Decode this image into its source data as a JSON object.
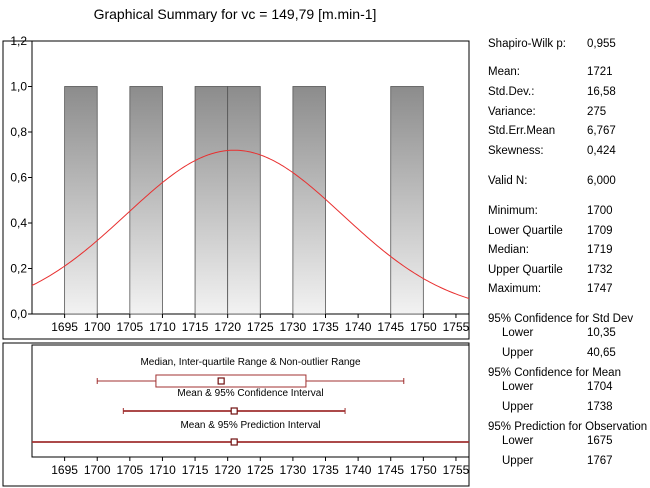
{
  "title": "Graphical Summary for vc = 149,79 [m.min-1]",
  "chart_data": [
    {
      "type": "bar",
      "subtype": "histogram",
      "bin_width": 5,
      "bins": [
        {
          "from": 1695,
          "to": 1700,
          "count": 1.0
        },
        {
          "from": 1705,
          "to": 1710,
          "count": 1.0
        },
        {
          "from": 1715,
          "to": 1720,
          "count": 1.0
        },
        {
          "from": 1720,
          "to": 1725,
          "count": 1.0
        },
        {
          "from": 1730,
          "to": 1735,
          "count": 1.0
        },
        {
          "from": 1745,
          "to": 1750,
          "count": 1.0
        }
      ],
      "normal_curve": {
        "mean": 1721,
        "sd": 16.58,
        "color": "#e83030"
      },
      "xlim": [
        1690,
        1757
      ],
      "ylim": [
        0,
        1.2
      ],
      "x_ticks": [
        "1695",
        "1700",
        "1705",
        "1710",
        "1715",
        "1720",
        "1725",
        "1730",
        "1735",
        "1740",
        "1745",
        "1750",
        "1755"
      ],
      "y_ticks": [
        "0,0",
        "0,2",
        "0,4",
        "0,6",
        "0,8",
        "1,0",
        "1,2"
      ],
      "bar_color": "#8c8c8c"
    },
    {
      "type": "box",
      "xlim": [
        1690,
        1757
      ],
      "x_ticks": [
        "1695",
        "1700",
        "1705",
        "1710",
        "1715",
        "1720",
        "1725",
        "1730",
        "1735",
        "1740",
        "1745",
        "1750",
        "1755"
      ],
      "color": "#a03030",
      "rows": [
        {
          "label": "Median, Inter-quartile Range & Non-outlier Range",
          "center": 1719,
          "box": [
            1709,
            1732
          ],
          "range": [
            1700,
            1747
          ]
        },
        {
          "label": "Mean & 95% Confidence Interval",
          "center": 1721,
          "range": [
            1704,
            1738
          ]
        },
        {
          "label": "Mean & 95% Prediction Interval",
          "center": 1721,
          "range": [
            1675,
            1767
          ]
        }
      ]
    }
  ],
  "stats": [
    {
      "label": "Shapiro-Wilk p:",
      "value": "0,955",
      "kind": "main"
    },
    {
      "label": "Mean:",
      "value": "1721",
      "kind": "main"
    },
    {
      "label": "Std.Dev.:",
      "value": "16,58",
      "kind": "main"
    },
    {
      "label": "Variance:",
      "value": "275",
      "kind": "main"
    },
    {
      "label": "Std.Err.Mean",
      "value": "6,767",
      "kind": "main"
    },
    {
      "label": "Skewness:",
      "value": "0,424",
      "kind": "main"
    },
    {
      "label": "Valid N:",
      "value": "6,000",
      "kind": "main"
    },
    {
      "label": "Minimum:",
      "value": "1700",
      "kind": "main"
    },
    {
      "label": "Lower Quartile",
      "value": "1709",
      "kind": "main"
    },
    {
      "label": "Median:",
      "value": "1719",
      "kind": "main"
    },
    {
      "label": "Upper Quartile",
      "value": "1732",
      "kind": "main"
    },
    {
      "label": "Maximum:",
      "value": "1747",
      "kind": "main"
    },
    {
      "label": "95% Confidence for Std Dev",
      "value": "",
      "kind": "hdr"
    },
    {
      "label": "Lower",
      "value": "10,35",
      "kind": "sub"
    },
    {
      "label": "Upper",
      "value": "40,65",
      "kind": "sub"
    },
    {
      "label": "95% Confidence for Mean",
      "value": "",
      "kind": "hdr"
    },
    {
      "label": "Lower",
      "value": "1704",
      "kind": "sub"
    },
    {
      "label": "Upper",
      "value": "1738",
      "kind": "sub"
    },
    {
      "label": "95% Prediction for Observation",
      "value": "",
      "kind": "hdr"
    },
    {
      "label": "Lower",
      "value": "1675",
      "kind": "sub"
    },
    {
      "label": "Upper",
      "value": "1767",
      "kind": "sub"
    }
  ]
}
